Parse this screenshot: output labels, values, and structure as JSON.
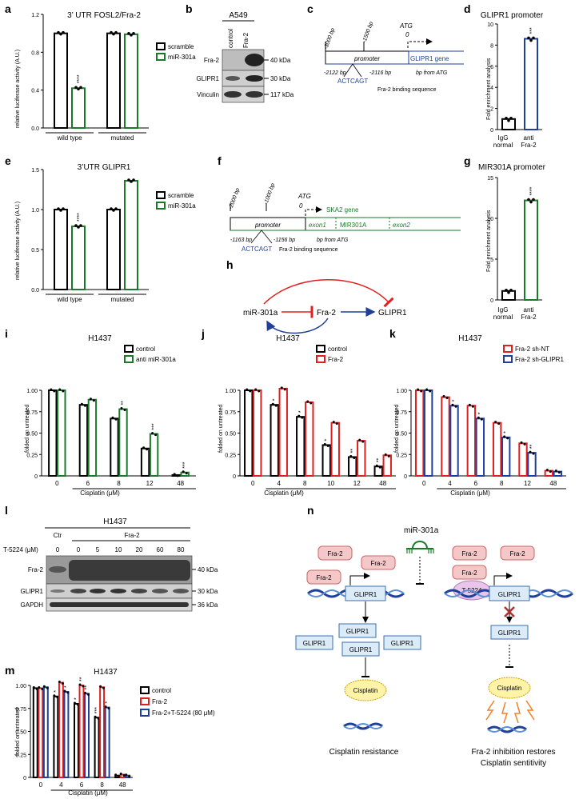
{
  "panel_labels": {
    "a": "a",
    "b": "b",
    "c": "c",
    "d": "d",
    "e": "e",
    "f": "f",
    "g": "g",
    "h": "h",
    "i": "i",
    "j": "j",
    "k": "k",
    "l": "l",
    "m": "m",
    "n": "n"
  },
  "colors": {
    "black": "#000000",
    "green": "#1a7a2a",
    "red": "#e02020",
    "blue": "#1f3f9a",
    "grey": "#666666",
    "pink": "#f4c8c8",
    "lightblue": "#dcebf8",
    "yellow": "#fff3a8",
    "lilac": "#e8c6ea"
  },
  "panel_a": {
    "title": "3’ UTR FOSL2/Fra-2",
    "ylabel": "relative luciferase activity (A.U.)",
    "legend": [
      "scramble",
      "miR-301a"
    ],
    "sig": "****"
  },
  "panel_e": {
    "title": "3’UTR GLIPR1",
    "ylabel": "relative luciferase activity (A.U.)",
    "legend": [
      "scramble",
      "miR-301a"
    ],
    "sig": "****"
  },
  "panel_b": {
    "cell": "A549",
    "lanes": [
      "control",
      "Fra-2"
    ],
    "rows": [
      "Fra-2",
      "GLIPR1",
      "Vinculin"
    ],
    "kda": [
      "40 kDa",
      "30 kDa",
      "117 kDa"
    ]
  },
  "panel_c": {
    "ticks": [
      "-3000 bp",
      "-1500 bp"
    ],
    "atg": "ATG",
    "zero": "0",
    "promoter": "promoter",
    "gene": "GLIPR1 gene",
    "pos1": "-2122 bp",
    "pos2": "-2116 bp",
    "seq": "ACTCAGT",
    "site": "Fra-2 binding sequence",
    "bpfrom": "bp from ATG"
  },
  "panel_d": {
    "title": "GLIPR1 promoter",
    "ylabel": "Fold enrichment analysis",
    "cats": [
      "IgG normal",
      "anti Fra-2"
    ],
    "cat1a": "IgG",
    "cat1b": "normal",
    "cat2a": "anti",
    "cat2b": "Fra-2",
    "sig": "***"
  },
  "panel_f": {
    "ticks": [
      "-2000 bp",
      "-1000 bp"
    ],
    "atg": "ATG",
    "zero": "0",
    "gene": "SKA2 gene",
    "promoter": "promoter",
    "exon1": "exon1",
    "mir": "MIR301A",
    "exon2": "exon2",
    "pos1": "-1163 bp",
    "pos2": "-1156 bp",
    "seq": "ACTCAGT",
    "site": "Fra-2 binding sequence",
    "bpfrom": "bp from ATG"
  },
  "panel_g": {
    "title": "MIR301A promoter",
    "ylabel": "Fold enrichment analysis",
    "cat1a": "IgG",
    "cat1b": "normal",
    "cat2a": "anti",
    "cat2b": "Fra-2",
    "sig": "****"
  },
  "panel_h": {
    "mir": "miR-301a",
    "fra2": "Fra-2",
    "glipr1": "GLIPR1"
  },
  "panel_i": {
    "title": "H1437",
    "ylabel": "folded on untreated",
    "xlabel": "Cisplatin (μM)",
    "legend": [
      "control",
      "anti miR-301a"
    ]
  },
  "panel_j": {
    "title": "H1437",
    "ylabel": "folded on untreated",
    "xlabel": "Cisplatin (μM)",
    "legend": [
      "control",
      "Fra-2"
    ]
  },
  "panel_k": {
    "title": "H1437",
    "ylabel": "folded on untreated",
    "xlabel": "Cisplatin (μM)",
    "legend": [
      "Fra-2 sh-NT",
      "Fra-2 sh-GLIPR1"
    ]
  },
  "panel_l": {
    "cell": "H1437",
    "ctr": "Ctr",
    "fra2": "Fra-2",
    "t5224": "T-5224 (μM)",
    "doses": [
      "0",
      "0",
      "5",
      "10",
      "20",
      "60",
      "80"
    ],
    "rows": [
      "Fra-2",
      "GLIPR1",
      "GAPDH"
    ],
    "kda": [
      "40 kDa",
      "30 kDa",
      "36 kDa"
    ]
  },
  "panel_m": {
    "title": "H1437",
    "ylabel": "folded on untreated",
    "xlabel": "Cisplatin (μM)",
    "legend": [
      "control",
      "Fra-2",
      "Fra-2+T-5224 (80 μM)"
    ]
  },
  "panel_n": {
    "mir": "miR-301a",
    "fra2": "Fra-2",
    "glipr1": "GLIPR1",
    "t5224": "T-5224",
    "cisplatin": "Cisplatin",
    "left_caption": "Cisplatin resistance",
    "right_caption1": "Fra-2 inhibition restores",
    "right_caption2": "Cisplatin sentitivity"
  },
  "chart_data": [
    {
      "id": "a",
      "type": "bar",
      "categories": [
        "wild type",
        "mutated"
      ],
      "series": [
        {
          "name": "scramble",
          "values": [
            1.0,
            1.0
          ]
        },
        {
          "name": "miR-301a",
          "values": [
            0.42,
            0.99
          ]
        }
      ],
      "ylim": [
        0,
        1.2
      ],
      "yticks": [
        "0.0",
        "0.4",
        "0.8",
        "1.2"
      ],
      "title": "3’ UTR FOSL2/Fra-2",
      "ylabel": "relative luciferase activity (A.U.)"
    },
    {
      "id": "d",
      "type": "bar",
      "categories": [
        "IgG normal",
        "anti Fra-2"
      ],
      "values": [
        1.0,
        8.6
      ],
      "ylim": [
        0,
        10
      ],
      "yticks": [
        "0",
        "2",
        "4",
        "6",
        "8",
        "10"
      ],
      "title": "GLIPR1 promoter",
      "ylabel": "Fold enrichment analysis"
    },
    {
      "id": "e",
      "type": "bar",
      "categories": [
        "wild type",
        "mutated"
      ],
      "series": [
        {
          "name": "scramble",
          "values": [
            1.0,
            1.0
          ]
        },
        {
          "name": "miR-301a",
          "values": [
            0.79,
            1.36
          ]
        }
      ],
      "ylim": [
        0,
        1.5
      ],
      "yticks": [
        "0.0",
        "0.5",
        "1.0",
        "1.5"
      ],
      "title": "3’UTR GLIPR1",
      "ylabel": "relative luciferase activity (A.U.)"
    },
    {
      "id": "g",
      "type": "bar",
      "categories": [
        "IgG normal",
        "anti Fra-2"
      ],
      "values": [
        1.1,
        12.2
      ],
      "ylim": [
        0,
        15
      ],
      "yticks": [
        "0",
        "5",
        "10",
        "15"
      ],
      "title": "MIR301A promoter",
      "ylabel": "Fold enrichment analysis"
    },
    {
      "id": "i",
      "type": "bar",
      "categories": [
        "0",
        "6",
        "8",
        "12",
        "48"
      ],
      "series": [
        {
          "name": "control",
          "values": [
            1.0,
            0.83,
            0.67,
            0.32,
            0.01
          ]
        },
        {
          "name": "anti miR-301a",
          "values": [
            1.0,
            0.89,
            0.78,
            0.49,
            0.04
          ]
        }
      ],
      "ylim": [
        0,
        1.0
      ],
      "yticks": [
        "0",
        "0.25",
        "0.50",
        "0.75",
        "1.00"
      ],
      "sig": [
        "",
        "",
        "**",
        "***",
        "***"
      ],
      "title": "H1437",
      "xlabel": "Cisplatin (μM)",
      "ylabel": "folded on untreated"
    },
    {
      "id": "j",
      "type": "bar",
      "categories": [
        "0",
        "4",
        "8",
        "10",
        "12",
        "48"
      ],
      "series": [
        {
          "name": "control",
          "values": [
            1.0,
            0.83,
            0.69,
            0.36,
            0.22,
            0.11
          ]
        },
        {
          "name": "Fra-2",
          "values": [
            1.0,
            1.02,
            0.86,
            0.62,
            0.41,
            0.24
          ]
        }
      ],
      "ylim": [
        0,
        1.0
      ],
      "yticks": [
        "0",
        "0.25",
        "0.50",
        "0.75",
        "1.00"
      ],
      "sig": [
        "",
        "*",
        "*",
        "*",
        "**",
        "**"
      ],
      "title": "H1437",
      "xlabel": "Cisplatin (μM)",
      "ylabel": "folded on untreated"
    },
    {
      "id": "k",
      "type": "bar",
      "categories": [
        "0",
        "4",
        "6",
        "8",
        "12",
        "48"
      ],
      "series": [
        {
          "name": "Fra-2 sh-NT",
          "values": [
            1.0,
            0.92,
            0.82,
            0.62,
            0.38,
            0.06
          ]
        },
        {
          "name": "Fra-2 sh-GLIPR1",
          "values": [
            1.0,
            0.82,
            0.67,
            0.45,
            0.27,
            0.05
          ]
        }
      ],
      "ylim": [
        0,
        1.0
      ],
      "yticks": [
        "0",
        "0.25",
        "0.50",
        "0.75",
        "1.00"
      ],
      "sig": [
        "",
        "*",
        "*",
        "*",
        "**",
        ""
      ],
      "title": "H1437",
      "xlabel": "Cisplatin (μM)",
      "ylabel": "folded on untreated"
    },
    {
      "id": "m",
      "type": "bar",
      "categories": [
        "0",
        "4",
        "6",
        "8",
        "48"
      ],
      "series": [
        {
          "name": "control",
          "values": [
            0.97,
            0.88,
            0.8,
            0.65,
            0.02
          ]
        },
        {
          "name": "Fra-2",
          "values": [
            0.97,
            1.03,
            1.0,
            0.98,
            0.03
          ]
        },
        {
          "name": "Fra-2+T-5224 (80 μM)",
          "values": [
            0.98,
            0.93,
            0.91,
            0.76,
            0.02
          ]
        }
      ],
      "ylim": [
        0,
        1.0
      ],
      "yticks": [
        "0",
        "0.25",
        "0.50",
        "0.75",
        "1.00"
      ],
      "sig": [
        [
          "",
          "",
          ""
        ],
        [
          "*",
          "",
          "*"
        ],
        [
          "*",
          "**",
          "**"
        ],
        [
          "***",
          "",
          "*"
        ],
        [
          "",
          "",
          ""
        ]
      ],
      "title": "H1437",
      "xlabel": "Cisplatin (μM)",
      "ylabel": "folded on untreated"
    }
  ]
}
